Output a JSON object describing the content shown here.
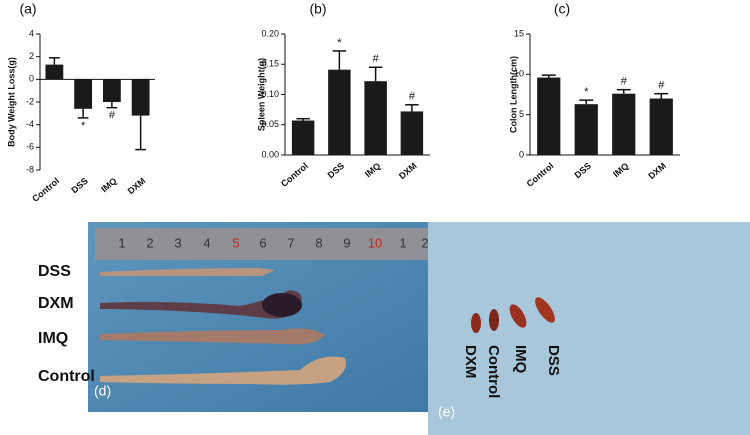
{
  "chart_data": [
    {
      "type": "bar",
      "panel": "(a)",
      "y_label": "Body Weight Loss(g)",
      "categories": [
        "Control",
        "DSS",
        "IMQ",
        "DXM"
      ],
      "values": [
        1.3,
        -2.6,
        -2.0,
        -3.2
      ],
      "errors": [
        0.6,
        0.8,
        0.5,
        3.0
      ],
      "annotations": [
        null,
        "*",
        "#",
        null
      ],
      "color": "#1a1a1a",
      "ylim": [
        -8,
        4
      ],
      "yticks": [
        -8,
        -6,
        -4,
        -2,
        0,
        2,
        4
      ]
    },
    {
      "type": "bar",
      "panel": "(b)",
      "y_label": "Spleen Weight(g)",
      "categories": [
        "Control",
        "DSS",
        "IMQ",
        "DXM"
      ],
      "values": [
        0.057,
        0.141,
        0.122,
        0.072
      ],
      "errors": [
        0.003,
        0.031,
        0.023,
        0.011
      ],
      "annotations": [
        null,
        "*",
        "#",
        "#"
      ],
      "color": "#1a1a1a",
      "ylim": [
        0,
        0.2
      ],
      "yticks": [
        {
          "value": 0,
          "label": "0.00"
        },
        {
          "value": 0.05,
          "label": "0.05"
        },
        {
          "value": 0.1,
          "label": "0.10"
        },
        {
          "value": 0.15,
          "label": "0.15"
        },
        {
          "value": 0.2,
          "label": "0.20"
        }
      ]
    },
    {
      "type": "bar",
      "panel": "(c)",
      "y_label": "Colon Length(cm)",
      "categories": [
        "Control",
        "DSS",
        "IMQ",
        "DXM"
      ],
      "values": [
        9.6,
        6.3,
        7.6,
        7.0
      ],
      "errors": [
        0.3,
        0.5,
        0.5,
        0.6
      ],
      "annotations": [
        null,
        "*",
        "#",
        "#"
      ],
      "color": "#1a1a1a",
      "ylim": [
        0,
        15
      ],
      "yticks": [
        0,
        5,
        10,
        15
      ]
    }
  ],
  "photos": [
    {
      "panel": "(d)",
      "sample_labels": [
        "DSS",
        "DXM",
        "IMQ",
        "Control"
      ],
      "ruler_marks": [
        "1",
        "2",
        "3",
        "4",
        "5",
        "6",
        "7",
        "8",
        "9",
        "10",
        "1",
        "2"
      ]
    },
    {
      "panel": "(e)",
      "sample_labels": [
        "DXM",
        "Control",
        "IMQ",
        "DSS"
      ]
    }
  ]
}
